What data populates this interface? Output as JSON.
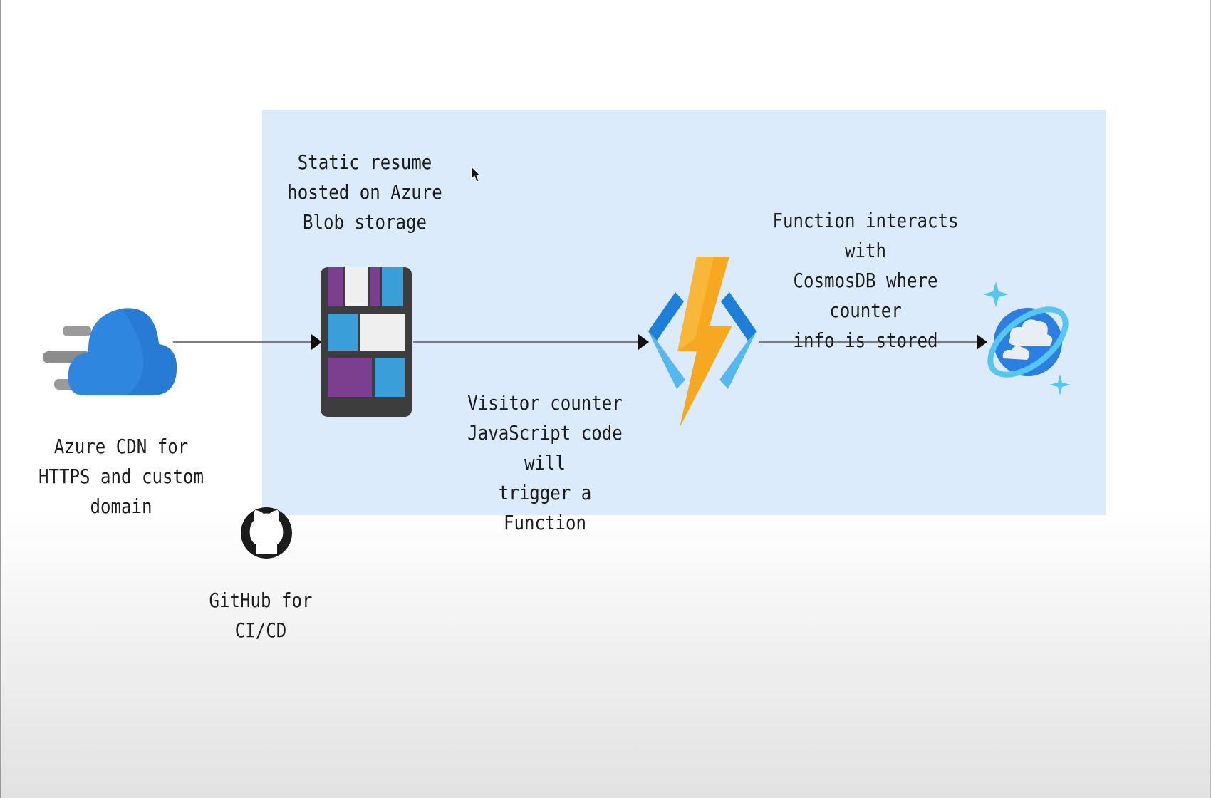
{
  "diagram": {
    "nodes": [
      {
        "id": "cdn",
        "icon": "cloud-cdn-icon",
        "label": "Azure CDN for\nHTTPS and custom\ndomain"
      },
      {
        "id": "blob",
        "icon": "blob-storage-icon",
        "label": "Static resume\nhosted on Azure\nBlob storage"
      },
      {
        "id": "function",
        "icon": "azure-function-icon",
        "label": "Function interacts with\nCosmosDB where counter\ninfo is stored"
      },
      {
        "id": "cosmos",
        "icon": "cosmosdb-icon",
        "label": ""
      },
      {
        "id": "github",
        "icon": "github-icon",
        "label": "GitHub for CI/CD"
      }
    ],
    "edges": [
      {
        "from": "cdn",
        "to": "blob",
        "label": ""
      },
      {
        "from": "blob",
        "to": "function",
        "label": "Visitor counter\nJavaScript code will\ntrigger a Function"
      },
      {
        "from": "function",
        "to": "cosmos",
        "label": ""
      }
    ],
    "colors": {
      "panel": "#dbebfb",
      "edge": "#7d7d7d",
      "cloud": "#2f86de",
      "bolt": "#f6a821",
      "brackets": "#1e7fd8",
      "cosmos": "#2a7fe0",
      "storage_purple": "#7a3f8e",
      "storage_blue": "#3a9fd8"
    }
  }
}
